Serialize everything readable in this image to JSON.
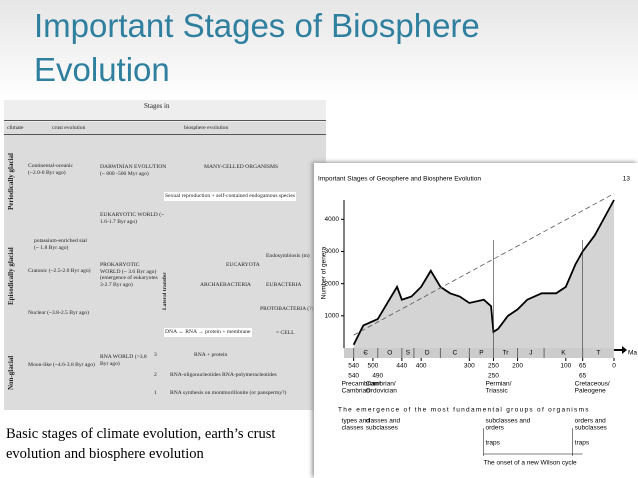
{
  "slide": {
    "title": "Important Stages of Biosphere Evolution",
    "caption": "Basic stages of climate evolution, earth’s crust evolution and biosphere evolution"
  },
  "left_figure": {
    "heading": "Stages in",
    "columns": [
      "climate",
      "crust evolution",
      "biosphere evolution"
    ],
    "climates": [
      "Periodically glacial",
      "Episodically glacial",
      "Non-glacial"
    ],
    "crust": [
      "Continental-oceanic (~2.0-0 Byr ago)",
      "potassium-enriched sial (~ 1.8 Byr ago)",
      "Cratonic (~2.5-2.0 Byr ago)",
      "Nuclear (~3.8-2.5 Byr ago)",
      "Moon-like (~4.6-3.8 Byr ago)"
    ],
    "biosphere": [
      "DARWINIAN EVOLUTION (~ 800 -500 Myr ago)",
      "MANY-CELLED ORGANISMS",
      "Sexual reproduction + self-contained endogamous species",
      "EUKARYOTIC WORLD (~ 1.6-1.7 Byr ago)",
      "Endosymbiosis (m)",
      "EUCARYOTA",
      "ARCHAEBACTERIA",
      "EUBACTERIA",
      "PROKARYOTIC WORLD (~ 3.6 Byr ago) (emergence of eukaryotes 3-2.7 Byr ago)",
      "Lateral transfer",
      "PROTOBACTERIA (?)",
      "DNA ↔ RNA → protein + membrane",
      "= CELL",
      "RNA WORLD (>3.8 Byr ago)",
      "RNA + protein",
      "RNA-oligonucleotides  RNA-polymeracleotides",
      "RNA synthesis on montmorillonite (or panspermy?)"
    ],
    "steps": [
      "3",
      "2",
      "1"
    ]
  },
  "chart_data": {
    "type": "line",
    "title": "Important Stages of Geosphere and Biosphere Evolution",
    "page": "13",
    "ylabel": "Number of genera",
    "xunit": "Ma",
    "x": [
      540,
      520,
      490,
      470,
      450,
      440,
      420,
      400,
      380,
      360,
      340,
      320,
      300,
      270,
      255,
      250,
      240,
      220,
      200,
      180,
      150,
      120,
      100,
      80,
      65,
      40,
      0
    ],
    "series": [
      {
        "color": "#000000",
        "values": [
          100,
          700,
          900,
          1400,
          1900,
          1500,
          1600,
          1900,
          2400,
          1900,
          1700,
          1600,
          1400,
          1500,
          1300,
          500,
          600,
          1000,
          1200,
          1500,
          1700,
          1700,
          1900,
          2600,
          3000,
          3500,
          4600
        ]
      },
      {
        "color": "#555555",
        "dashed": true,
        "values": [
          400,
          null,
          null,
          null,
          null,
          null,
          null,
          null,
          null,
          null,
          null,
          null,
          null,
          null,
          null,
          null,
          null,
          null,
          null,
          null,
          null,
          null,
          null,
          null,
          null,
          null,
          4800
        ]
      }
    ],
    "xlim": [
      560,
      0
    ],
    "ylim": [
      0,
      4600
    ],
    "xticks": [
      540,
      500,
      440,
      400,
      300,
      250,
      200,
      100,
      65,
      0
    ],
    "yticks": [
      1000,
      2000,
      3000,
      4000
    ],
    "periods": [
      "Є",
      "O",
      "S",
      "D",
      "C",
      "P",
      "Tr",
      "J",
      "K",
      "T"
    ],
    "period_starts": [
      540,
      490,
      440,
      415,
      360,
      300,
      250,
      200,
      145,
      65
    ],
    "boundaries": [
      {
        "age": 540,
        "label": "Precambrian/ Cambrian"
      },
      {
        "age": 490,
        "label": "Cambrian/ Ordovician"
      },
      {
        "age": 250,
        "label": "Permian/ Triassic"
      },
      {
        "age": 65,
        "label": "Cretaceous/ Paleogene"
      }
    ],
    "emergence": "The emergence of the most fundamental groups of organisms",
    "groups": [
      {
        "age": 540,
        "label": "types and classes"
      },
      {
        "age": 490,
        "label": "classes and subclasses"
      },
      {
        "age": 250,
        "label": "subclasses and orders"
      },
      {
        "age": 65,
        "label": "orders and subclasses"
      }
    ],
    "traps": [
      {
        "age": 250,
        "label": "traps"
      },
      {
        "age": 65,
        "label": "traps"
      }
    ],
    "wilson": "The onset of a new Wilson cycle"
  }
}
